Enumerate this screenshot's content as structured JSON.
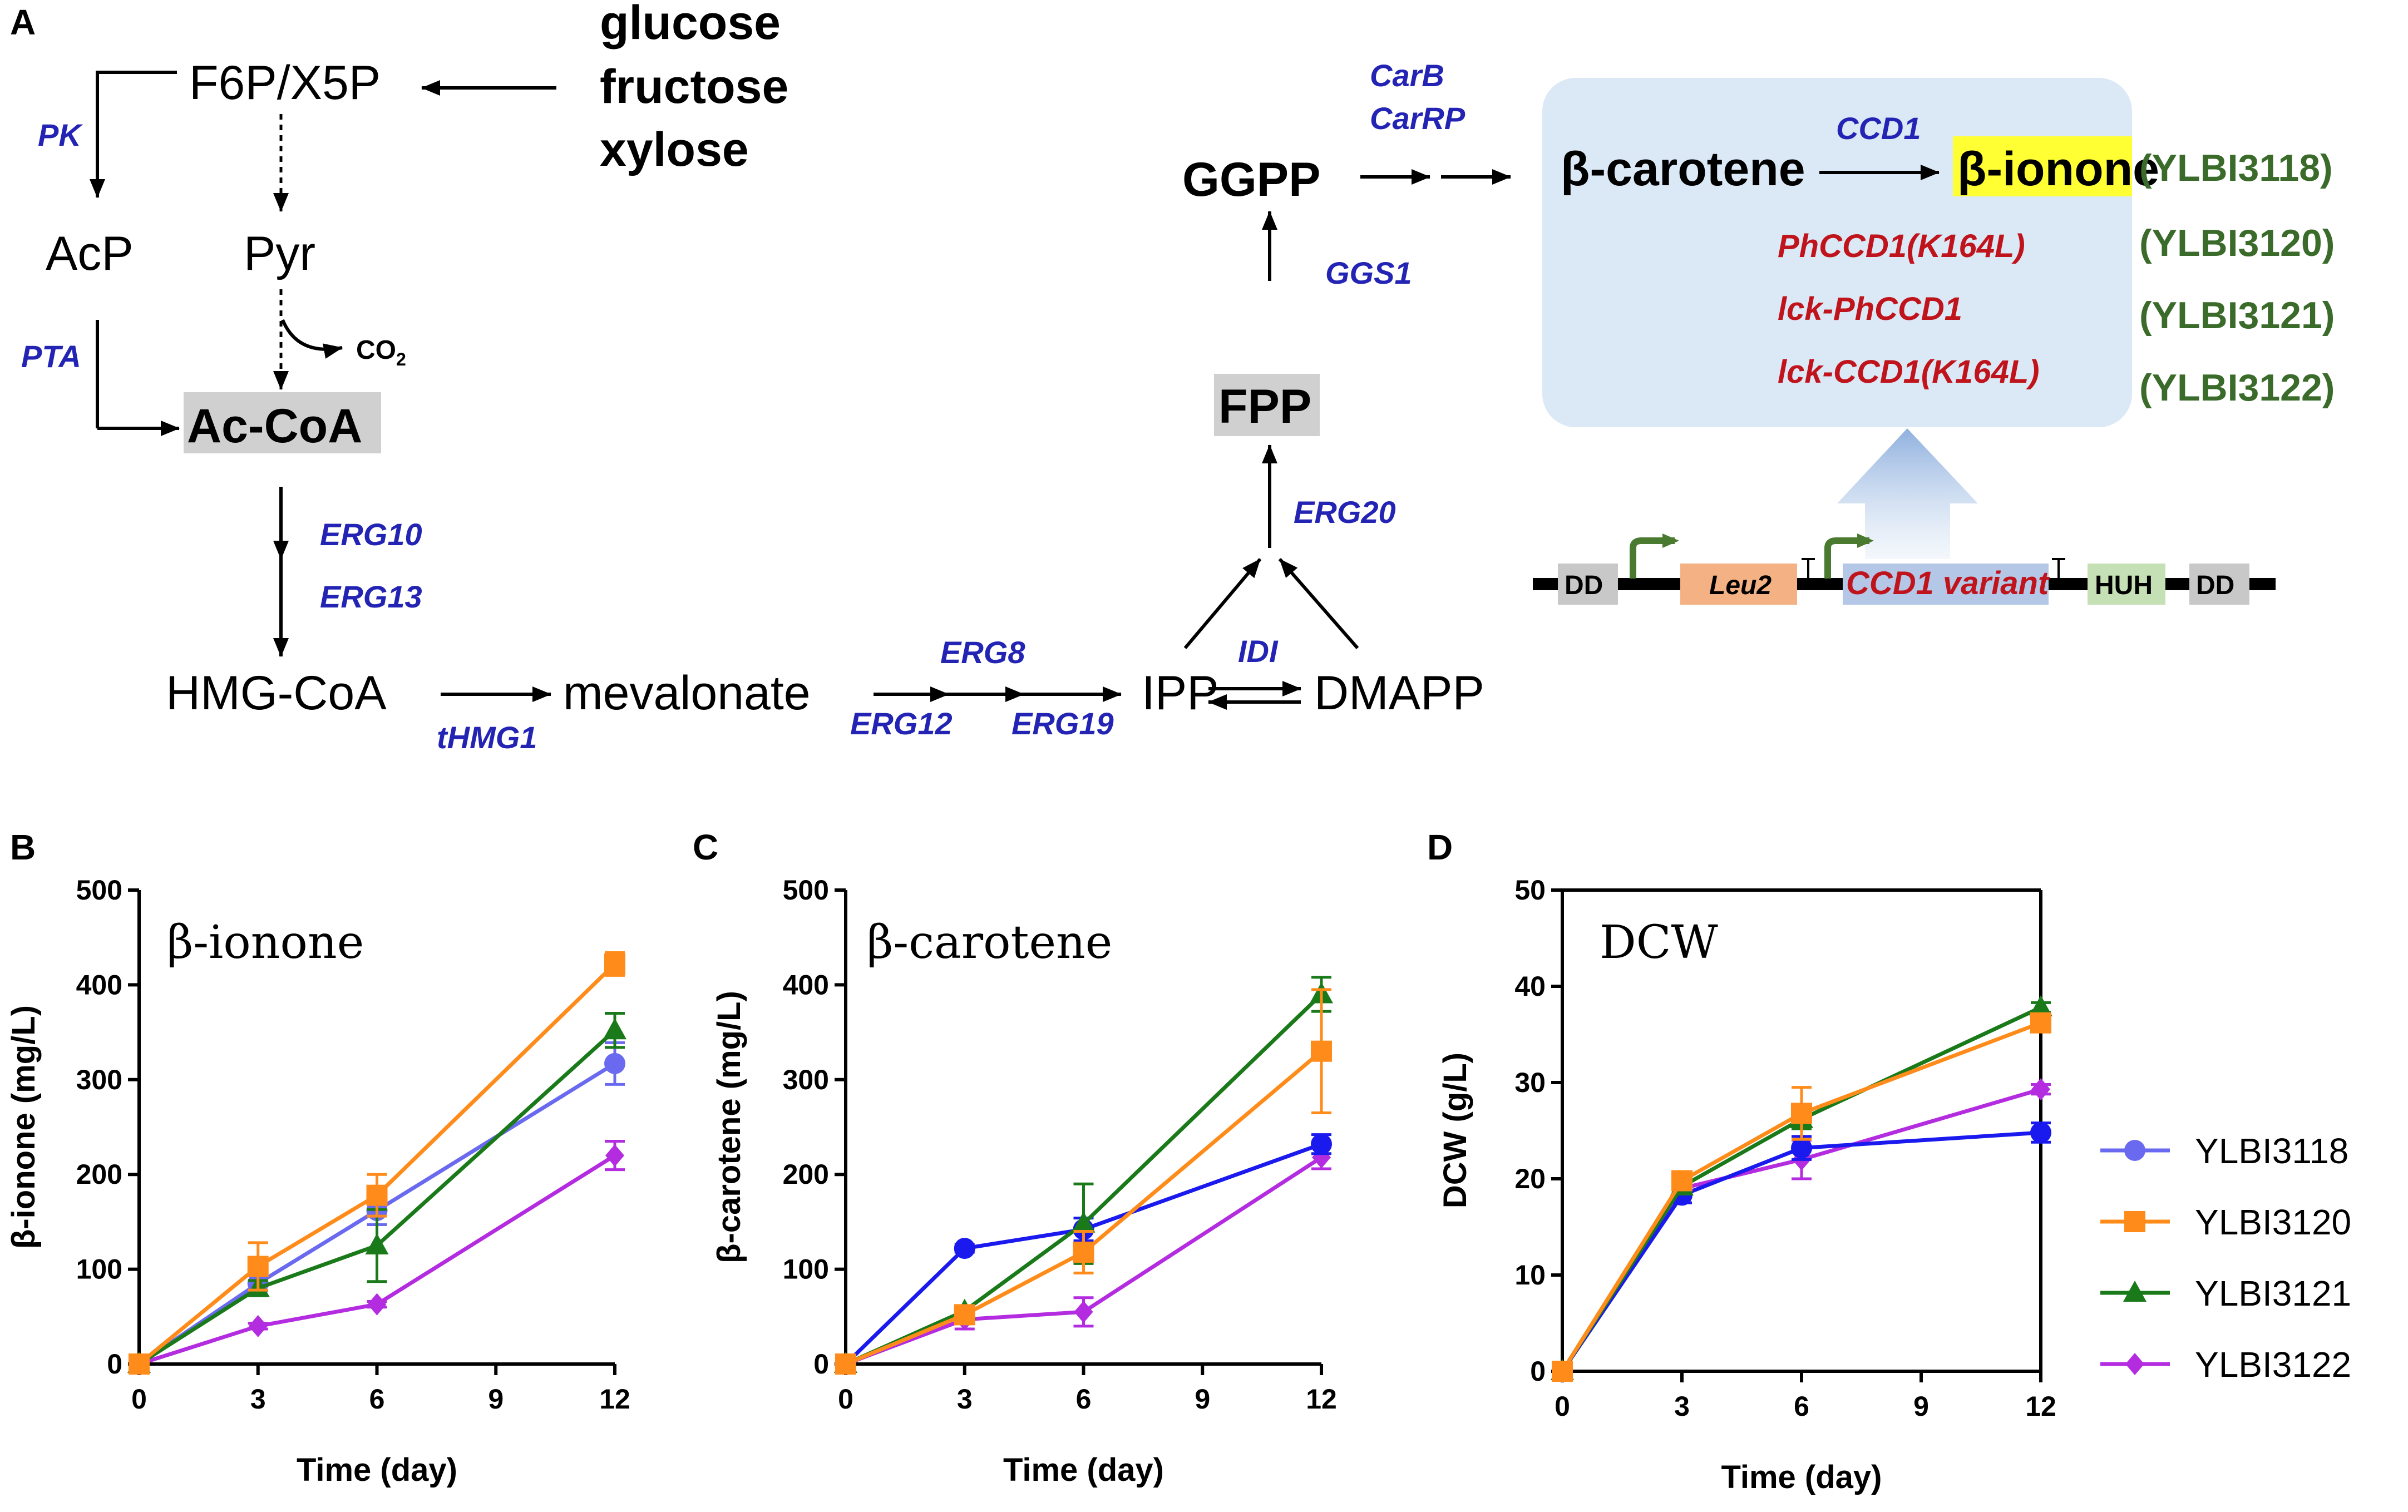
{
  "panels": {
    "a": "A",
    "b": "B",
    "c": "C",
    "d": "D"
  },
  "pathway": {
    "sugars": [
      "glucose",
      "fructose",
      "xylose"
    ],
    "f6p": "F6P/X5P",
    "acp": "AcP",
    "pyr": "Pyr",
    "co2": "CO",
    "co2_sub": "2",
    "accoa": "Ac-CoA",
    "hmgcoa": "HMG-CoA",
    "mevalonate": "mevalonate",
    "ipp": "IPP",
    "dmapp": "DMAPP",
    "fpp": "FPP",
    "ggpp": "GGPP",
    "carotene": "β-carotene",
    "ionone": "β-ionone",
    "enzymes": {
      "pk": "PK",
      "pta": "PTA",
      "erg10": "ERG10",
      "erg13": "ERG13",
      "thmg1": "tHMG1",
      "erg8": "ERG8",
      "erg12": "ERG12",
      "erg19": "ERG19",
      "idi": "IDI",
      "erg20": "ERG20",
      "ggs1": "GGS1",
      "carb": "CarB",
      "carrp": "CarRP",
      "ccd1": "CCD1"
    },
    "variants": [
      "PhCCD1(K164L)",
      "lck-PhCCD1",
      "lck-CCD1(K164L)"
    ],
    "strains": [
      "(YLBI3118)",
      "(YLBI3120)",
      "(YLBI3121)",
      "(YLBI3122)"
    ],
    "construct": {
      "dd": "DD",
      "leu2": "Leu2",
      "ccd1_variant": "CCD1 variant",
      "huh": "HUH",
      "dd2": "DD"
    }
  },
  "colors": {
    "YLBI3118": "#6a6af0",
    "YLBI3120": "#ff8c1a",
    "YLBI3121": "#1a7a1a",
    "YLBI3122": "#b42ce0",
    "YLBI3118_C": "#1a1aee",
    "enzyme": "#2424b4",
    "variant": "#c0141c",
    "strain": "#3a6b2a",
    "highlight": "#ffff33",
    "box": "#dbe8f5"
  },
  "legend": [
    "YLBI3118",
    "YLBI3120",
    "YLBI3121",
    "YLBI3122"
  ],
  "chart_data": [
    {
      "type": "line",
      "panel": "B",
      "title": "β-ionone",
      "xlabel": "Time (day)",
      "ylabel": "β-ionone (mg/L)",
      "x": [
        0,
        3,
        6,
        12
      ],
      "xticks": [
        "0",
        "3",
        "6",
        "9",
        "12"
      ],
      "xlim": [
        0,
        12
      ],
      "ylim": [
        0,
        500
      ],
      "yticks": [
        "0",
        "100",
        "200",
        "300",
        "400",
        "500"
      ],
      "series": [
        {
          "name": "YLBI3118",
          "values": [
            0,
            85,
            162,
            317
          ],
          "err": [
            0,
            8,
            15,
            22
          ]
        },
        {
          "name": "YLBI3120",
          "values": [
            0,
            103,
            178,
            422
          ],
          "err": [
            0,
            25,
            22,
            12
          ]
        },
        {
          "name": "YLBI3121",
          "values": [
            0,
            80,
            125,
            352
          ],
          "err": [
            0,
            8,
            38,
            18
          ]
        },
        {
          "name": "YLBI3122",
          "values": [
            0,
            40,
            63,
            220
          ],
          "err": [
            0,
            3,
            3,
            15
          ]
        }
      ]
    },
    {
      "type": "line",
      "panel": "C",
      "title": "β-carotene",
      "xlabel": "Time (day)",
      "ylabel": "β-carotene (mg/L)",
      "x": [
        0,
        3,
        6,
        12
      ],
      "xticks": [
        "0",
        "3",
        "6",
        "9",
        "12"
      ],
      "xlim": [
        0,
        12
      ],
      "ylim": [
        0,
        500
      ],
      "yticks": [
        "0",
        "100",
        "200",
        "300",
        "400",
        "500"
      ],
      "series": [
        {
          "name": "YLBI3118",
          "values": [
            0,
            122,
            142,
            232
          ],
          "err": [
            0,
            4,
            12,
            10
          ]
        },
        {
          "name": "YLBI3120",
          "values": [
            0,
            52,
            118,
            330
          ],
          "err": [
            0,
            6,
            22,
            65
          ]
        },
        {
          "name": "YLBI3121",
          "values": [
            0,
            56,
            148,
            390
          ],
          "err": [
            0,
            4,
            42,
            18
          ]
        },
        {
          "name": "YLBI3122",
          "values": [
            0,
            47,
            55,
            218
          ],
          "err": [
            0,
            10,
            15,
            12
          ]
        }
      ]
    },
    {
      "type": "line",
      "panel": "D",
      "title": "DCW",
      "xlabel": "Time (day)",
      "ylabel": "DCW (g/L)",
      "x": [
        0,
        3,
        6,
        12
      ],
      "xticks": [
        "0",
        "3",
        "6",
        "9",
        "12"
      ],
      "xlim": [
        0,
        12
      ],
      "ylim": [
        0,
        50
      ],
      "yticks": [
        "0",
        "10",
        "20",
        "30",
        "40",
        "50"
      ],
      "series": [
        {
          "name": "YLBI3118",
          "values": [
            0,
            18.3,
            23.2,
            24.8
          ],
          "err": [
            0,
            0.8,
            1.2,
            1.0
          ]
        },
        {
          "name": "YLBI3120",
          "values": [
            0,
            19.8,
            26.8,
            36.2
          ],
          "err": [
            0,
            0.5,
            2.7,
            0.6
          ]
        },
        {
          "name": "YLBI3121",
          "values": [
            0,
            19.2,
            26.2,
            37.8
          ],
          "err": [
            0,
            0.5,
            1.0,
            0.5
          ]
        },
        {
          "name": "YLBI3122",
          "values": [
            0,
            19.0,
            22.0,
            29.3
          ],
          "err": [
            0,
            0.5,
            2.0,
            0.5
          ]
        }
      ]
    }
  ]
}
